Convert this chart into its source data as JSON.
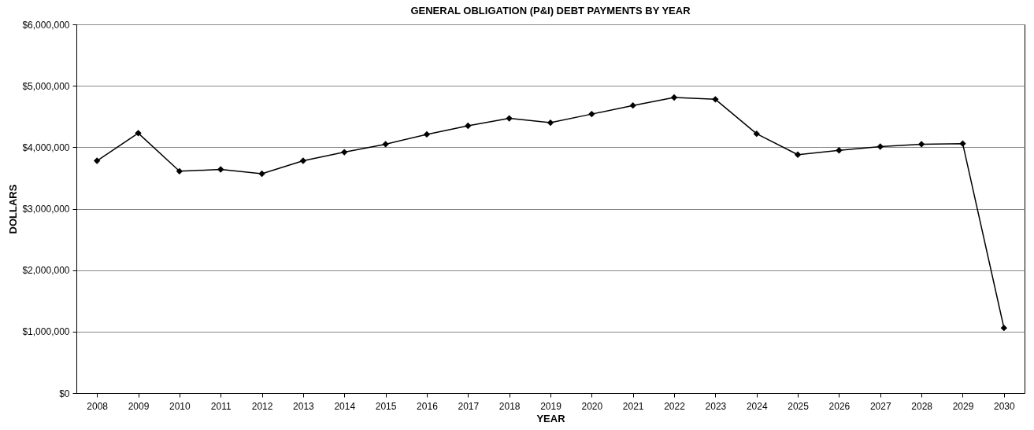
{
  "chart_data": {
    "type": "line",
    "title": "GENERAL OBLIGATION (P&I) DEBT PAYMENTS BY YEAR",
    "xlabel": "YEAR",
    "ylabel": "DOLLARS",
    "categories": [
      "2008",
      "2009",
      "2010",
      "2011",
      "2012",
      "2013",
      "2014",
      "2015",
      "2016",
      "2017",
      "2018",
      "2019",
      "2020",
      "2021",
      "2022",
      "2023",
      "2024",
      "2025",
      "2026",
      "2027",
      "2028",
      "2029",
      "2030"
    ],
    "series": [
      {
        "color": "#000000",
        "values": [
          3780000,
          4230000,
          3610000,
          3640000,
          3570000,
          3780000,
          3920000,
          4050000,
          4210000,
          4350000,
          4470000,
          4400000,
          4540000,
          4680000,
          4810000,
          4780000,
          4220000,
          3880000,
          3950000,
          4010000,
          4050000,
          4060000,
          1060000
        ]
      }
    ],
    "ylim": [
      0,
      6000000
    ],
    "yticks": [
      {
        "value": 0,
        "label": "$0"
      },
      {
        "value": 1000000,
        "label": "$1,000,000"
      },
      {
        "value": 2000000,
        "label": "$2,000,000"
      },
      {
        "value": 3000000,
        "label": "$3,000,000"
      },
      {
        "value": 4000000,
        "label": "$4,000,000"
      },
      {
        "value": 5000000,
        "label": "$5,000,000"
      },
      {
        "value": 6000000,
        "label": "$6,000,000"
      }
    ],
    "grid": "y",
    "marker": "diamond",
    "line_style": "solid"
  }
}
